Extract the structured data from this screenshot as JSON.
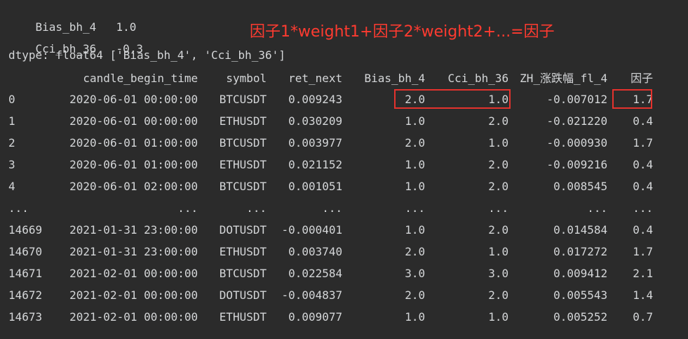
{
  "series": [
    {
      "name": "Bias_bh_4",
      "value": "1.0"
    },
    {
      "name": "Cci_bh_36",
      "value": "-0.3"
    }
  ],
  "dtype_line": "dtype: float64 ['Bias_bh_4', 'Cci_bh_36']",
  "annotation": "因子1*weight1+因子2*weight2+...=因子",
  "annotation_color": "#ff3b30",
  "highlight_color": "#e5322d",
  "table": {
    "columns": [
      "",
      "candle_begin_time",
      "symbol",
      "ret_next",
      "Bias_bh_4",
      "Cci_bh_36",
      "ZH_涨跌幅_fl_4",
      "因子"
    ],
    "rows": [
      [
        "0",
        "2020-06-01 00:00:00",
        "BTCUSDT",
        "0.009243",
        "2.0",
        "1.0",
        "-0.007012",
        "1.7"
      ],
      [
        "1",
        "2020-06-01 00:00:00",
        "ETHUSDT",
        "0.030209",
        "1.0",
        "2.0",
        "-0.021220",
        "0.4"
      ],
      [
        "2",
        "2020-06-01 01:00:00",
        "BTCUSDT",
        "0.003977",
        "2.0",
        "1.0",
        "-0.000930",
        "1.7"
      ],
      [
        "3",
        "2020-06-01 01:00:00",
        "ETHUSDT",
        "0.021152",
        "1.0",
        "2.0",
        "-0.009216",
        "0.4"
      ],
      [
        "4",
        "2020-06-01 02:00:00",
        "BTCUSDT",
        "0.001051",
        "1.0",
        "2.0",
        "0.008545",
        "0.4"
      ],
      [
        "...",
        "...",
        "...",
        "...",
        "...",
        "...",
        "...",
        "..."
      ],
      [
        "14669",
        "2021-01-31 23:00:00",
        "DOTUSDT",
        "-0.000401",
        "1.0",
        "2.0",
        "0.014584",
        "0.4"
      ],
      [
        "14670",
        "2021-01-31 23:00:00",
        "ETHUSDT",
        "0.003740",
        "2.0",
        "1.0",
        "0.017272",
        "1.7"
      ],
      [
        "14671",
        "2021-02-01 00:00:00",
        "BTCUSDT",
        "0.022584",
        "3.0",
        "3.0",
        "0.009412",
        "2.1"
      ],
      [
        "14672",
        "2021-02-01 00:00:00",
        "DOTUSDT",
        "-0.004837",
        "2.0",
        "2.0",
        "0.005543",
        "1.4"
      ],
      [
        "14673",
        "2021-02-01 00:00:00",
        "ETHUSDT",
        "0.009077",
        "1.0",
        "1.0",
        "0.005252",
        "0.7"
      ]
    ]
  }
}
